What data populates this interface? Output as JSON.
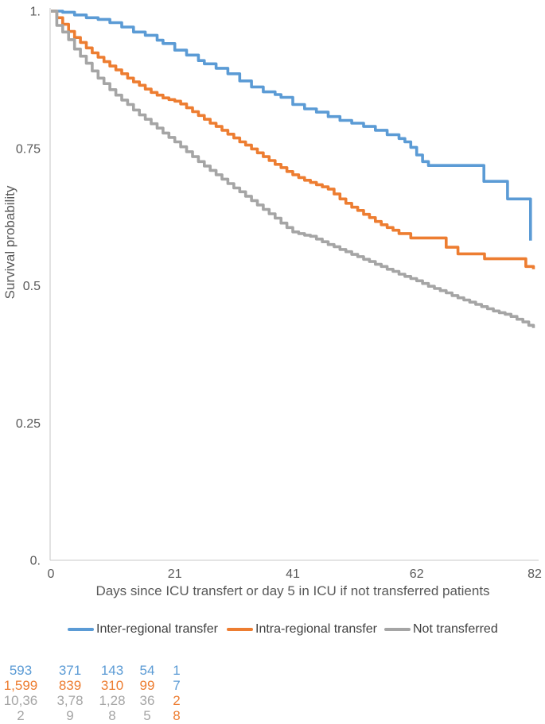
{
  "chart_data": {
    "type": "line",
    "variant": "kaplan_meier_step",
    "title": "",
    "xlabel": "Days since ICU transfert or day 5 in ICU if not transferred patients",
    "ylabel": "Survival probability",
    "xlim": [
      0,
      82
    ],
    "ylim": [
      0,
      1
    ],
    "grid": false,
    "legend_position": "bottom",
    "axis_line_color": "#D3D3D3",
    "axis_text_color": "#595959",
    "xticks": {
      "values": [
        0,
        21,
        41,
        62,
        82
      ],
      "labels": [
        "0",
        "21",
        "41",
        "62",
        "82"
      ]
    },
    "yticks": {
      "values": [
        1,
        0.75,
        0.5,
        0.25,
        0
      ],
      "labels": [
        "1.",
        "0.75",
        "0.5",
        "0.25",
        "0."
      ]
    },
    "series": [
      {
        "name": "Inter-regional transfer",
        "color": "#5B9BD5",
        "points": [
          [
            0,
            1.0
          ],
          [
            2,
            0.998
          ],
          [
            4,
            0.993
          ],
          [
            6,
            0.988
          ],
          [
            8,
            0.985
          ],
          [
            10,
            0.979
          ],
          [
            12,
            0.971
          ],
          [
            14,
            0.962
          ],
          [
            16,
            0.956
          ],
          [
            18,
            0.947
          ],
          [
            19,
            0.941
          ],
          [
            21,
            0.929
          ],
          [
            23,
            0.92
          ],
          [
            25,
            0.91
          ],
          [
            26,
            0.904
          ],
          [
            28,
            0.896
          ],
          [
            30,
            0.886
          ],
          [
            32,
            0.873
          ],
          [
            34,
            0.862
          ],
          [
            36,
            0.853
          ],
          [
            38,
            0.848
          ],
          [
            39,
            0.843
          ],
          [
            41,
            0.83
          ],
          [
            43,
            0.822
          ],
          [
            45,
            0.816
          ],
          [
            47,
            0.808
          ],
          [
            49,
            0.801
          ],
          [
            51,
            0.796
          ],
          [
            53,
            0.79
          ],
          [
            55,
            0.783
          ],
          [
            57,
            0.775
          ],
          [
            59,
            0.768
          ],
          [
            60,
            0.762
          ],
          [
            61,
            0.752
          ],
          [
            62,
            0.738
          ],
          [
            63,
            0.726
          ],
          [
            64,
            0.719
          ],
          [
            73.4,
            0.69
          ],
          [
            77.4,
            0.658
          ],
          [
            81.3,
            0.582
          ]
        ]
      },
      {
        "name": "Intra-regional transfer",
        "color": "#ED7D31",
        "points": [
          [
            0,
            1.0
          ],
          [
            1,
            0.988
          ],
          [
            2,
            0.976
          ],
          [
            3,
            0.963
          ],
          [
            4,
            0.952
          ],
          [
            5,
            0.943
          ],
          [
            6,
            0.933
          ],
          [
            7,
            0.924
          ],
          [
            8,
            0.916
          ],
          [
            9,
            0.908
          ],
          [
            10,
            0.9
          ],
          [
            11,
            0.893
          ],
          [
            12,
            0.886
          ],
          [
            13,
            0.878
          ],
          [
            14,
            0.871
          ],
          [
            15,
            0.865
          ],
          [
            16,
            0.858
          ],
          [
            17,
            0.852
          ],
          [
            18,
            0.847
          ],
          [
            19,
            0.842
          ],
          [
            20,
            0.839
          ],
          [
            21,
            0.836
          ],
          [
            22,
            0.831
          ],
          [
            23,
            0.824
          ],
          [
            24,
            0.817
          ],
          [
            25,
            0.81
          ],
          [
            26,
            0.803
          ],
          [
            27,
            0.796
          ],
          [
            28,
            0.79
          ],
          [
            29,
            0.783
          ],
          [
            30,
            0.776
          ],
          [
            31,
            0.769
          ],
          [
            32,
            0.762
          ],
          [
            33,
            0.756
          ],
          [
            34,
            0.749
          ],
          [
            35,
            0.742
          ],
          [
            36,
            0.735
          ],
          [
            37,
            0.728
          ],
          [
            38,
            0.721
          ],
          [
            39,
            0.715
          ],
          [
            40,
            0.708
          ],
          [
            41,
            0.702
          ],
          [
            42,
            0.697
          ],
          [
            43,
            0.692
          ],
          [
            44,
            0.688
          ],
          [
            45,
            0.684
          ],
          [
            46,
            0.68
          ],
          [
            47,
            0.676
          ],
          [
            48,
            0.667
          ],
          [
            49,
            0.658
          ],
          [
            50,
            0.65
          ],
          [
            51,
            0.643
          ],
          [
            52,
            0.637
          ],
          [
            53,
            0.63
          ],
          [
            54,
            0.624
          ],
          [
            55,
            0.617
          ],
          [
            56,
            0.611
          ],
          [
            57,
            0.606
          ],
          [
            58,
            0.601
          ],
          [
            59,
            0.595
          ],
          [
            61,
            0.587
          ],
          [
            67,
            0.57
          ],
          [
            69,
            0.558
          ],
          [
            73.5,
            0.549
          ],
          [
            80.5,
            0.535
          ],
          [
            81.8,
            0.53
          ]
        ]
      },
      {
        "name": "Not transferred",
        "color": "#A5A5A5",
        "points": [
          [
            0,
            1.0
          ],
          [
            1,
            0.974
          ],
          [
            2,
            0.962
          ],
          [
            3,
            0.948
          ],
          [
            4,
            0.931
          ],
          [
            5,
            0.918
          ],
          [
            6,
            0.905
          ],
          [
            7,
            0.891
          ],
          [
            8,
            0.878
          ],
          [
            9,
            0.868
          ],
          [
            10,
            0.857
          ],
          [
            11,
            0.847
          ],
          [
            12,
            0.838
          ],
          [
            13,
            0.83
          ],
          [
            14,
            0.82
          ],
          [
            15,
            0.811
          ],
          [
            16,
            0.803
          ],
          [
            17,
            0.795
          ],
          [
            18,
            0.787
          ],
          [
            19,
            0.778
          ],
          [
            20,
            0.77
          ],
          [
            21,
            0.762
          ],
          [
            22,
            0.753
          ],
          [
            23,
            0.744
          ],
          [
            24,
            0.735
          ],
          [
            25,
            0.726
          ],
          [
            26,
            0.718
          ],
          [
            27,
            0.71
          ],
          [
            28,
            0.702
          ],
          [
            29,
            0.694
          ],
          [
            30,
            0.686
          ],
          [
            31,
            0.678
          ],
          [
            32,
            0.671
          ],
          [
            33,
            0.663
          ],
          [
            34,
            0.655
          ],
          [
            35,
            0.647
          ],
          [
            36,
            0.639
          ],
          [
            37,
            0.631
          ],
          [
            38,
            0.623
          ],
          [
            39,
            0.614
          ],
          [
            40,
            0.606
          ],
          [
            41,
            0.598
          ],
          [
            42,
            0.595
          ],
          [
            43,
            0.592
          ],
          [
            44,
            0.59
          ],
          [
            45,
            0.585
          ],
          [
            46,
            0.58
          ],
          [
            47,
            0.575
          ],
          [
            48,
            0.571
          ],
          [
            49,
            0.566
          ],
          [
            50,
            0.562
          ],
          [
            51,
            0.557
          ],
          [
            52,
            0.553
          ],
          [
            53,
            0.548
          ],
          [
            54,
            0.544
          ],
          [
            55,
            0.539
          ],
          [
            56,
            0.535
          ],
          [
            57,
            0.53
          ],
          [
            58,
            0.526
          ],
          [
            59,
            0.521
          ],
          [
            60,
            0.517
          ],
          [
            61,
            0.513
          ],
          [
            62,
            0.509
          ],
          [
            63,
            0.504
          ],
          [
            64,
            0.499
          ],
          [
            65,
            0.495
          ],
          [
            66,
            0.491
          ],
          [
            67,
            0.487
          ],
          [
            68,
            0.482
          ],
          [
            69,
            0.478
          ],
          [
            70,
            0.474
          ],
          [
            71,
            0.47
          ],
          [
            72,
            0.466
          ],
          [
            73,
            0.462
          ],
          [
            74,
            0.458
          ],
          [
            75,
            0.454
          ],
          [
            76,
            0.451
          ],
          [
            77,
            0.448
          ],
          [
            78,
            0.444
          ],
          [
            79,
            0.439
          ],
          [
            80,
            0.434
          ],
          [
            81,
            0.428
          ],
          [
            81.8,
            0.423
          ]
        ]
      }
    ]
  },
  "legend": {
    "items": [
      {
        "label": "Inter-regional transfer",
        "color": "#5B9BD5"
      },
      {
        "label": "Intra-regional transfer",
        "color": "#ED7D31"
      },
      {
        "label": "Not transferred",
        "color": "#A5A5A5"
      }
    ]
  },
  "risk_table": {
    "rows": [
      {
        "cells": [
          {
            "text": "593",
            "color": "#5B9BD5"
          },
          {
            "text": "371",
            "color": "#5B9BD5"
          },
          {
            "text": "143",
            "color": "#5B9BD5"
          },
          {
            "text": "54",
            "color": "#5B9BD5"
          },
          {
            "text": "1",
            "color": "#5B9BD5"
          }
        ]
      },
      {
        "cells": [
          {
            "text": "1,599",
            "color": "#ED7D31"
          },
          {
            "text": "839",
            "color": "#ED7D31"
          },
          {
            "text": "310",
            "color": "#ED7D31"
          },
          {
            "text": "99",
            "color": "#ED7D31"
          },
          {
            "text": "7",
            "color": "#5B9BD5"
          }
        ]
      },
      {
        "cells": [
          {
            "text": "10,36",
            "color": "#A5A5A5"
          },
          {
            "text": "3,78",
            "color": "#A5A5A5"
          },
          {
            "text": "1,28",
            "color": "#A5A5A5"
          },
          {
            "text": "36",
            "color": "#A5A5A5"
          },
          {
            "text": "2",
            "color": "#ED7D31"
          }
        ]
      },
      {
        "cells": [
          {
            "text": "2",
            "color": "#A5A5A5"
          },
          {
            "text": "9",
            "color": "#A5A5A5"
          },
          {
            "text": "8",
            "color": "#A5A5A5"
          },
          {
            "text": "5",
            "color": "#A5A5A5"
          },
          {
            "text": "8",
            "color": "#ED7D31"
          }
        ]
      }
    ]
  }
}
